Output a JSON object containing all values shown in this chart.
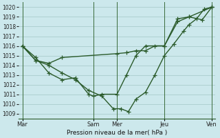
{
  "title": "Pression niveau de la mer( hPa )",
  "background_color": "#cce8ec",
  "grid_color": "#aacccc",
  "line_color": "#2a5a2a",
  "marker": "+",
  "marker_size": 4,
  "line_width": 1.0,
  "ylim": [
    1008.5,
    1020.5
  ],
  "yticks": [
    1009,
    1010,
    1011,
    1012,
    1013,
    1014,
    1015,
    1016,
    1017,
    1018,
    1019,
    1020
  ],
  "ytick_fontsize": 5.5,
  "xtick_labels": [
    "Mar",
    "Sam",
    "Mer",
    "Jeu",
    "Ven"
  ],
  "xtick_positions": [
    0.0,
    0.375,
    0.5,
    0.75,
    1.0
  ],
  "vline_positions": [
    0.0,
    0.375,
    0.5,
    0.75,
    1.0
  ],
  "series": [
    {
      "x": [
        0.0,
        0.07,
        0.14,
        0.21,
        0.5,
        0.55,
        0.6,
        0.65,
        0.7,
        0.75,
        0.82,
        0.88,
        0.95,
        1.0
      ],
      "y": [
        1016.0,
        1014.5,
        1014.2,
        1014.8,
        1015.2,
        1015.3,
        1015.5,
        1015.5,
        1016.0,
        1016.0,
        1018.8,
        1019.0,
        1018.7,
        1020.0
      ]
    },
    {
      "x": [
        0.0,
        0.07,
        0.14,
        0.21,
        0.28,
        0.35,
        0.375,
        0.42,
        0.5,
        0.55,
        0.6,
        0.65,
        0.75,
        0.82,
        0.88,
        1.0
      ],
      "y": [
        1016.0,
        1014.8,
        1013.2,
        1012.5,
        1012.7,
        1011.0,
        1010.8,
        1011.0,
        1011.0,
        1013.0,
        1015.0,
        1016.0,
        1016.0,
        1018.5,
        1019.0,
        1020.0
      ]
    },
    {
      "x": [
        0.0,
        0.07,
        0.14,
        0.21,
        0.28,
        0.35,
        0.42,
        0.48,
        0.52,
        0.56,
        0.6,
        0.65,
        0.7,
        0.75,
        0.8,
        0.85,
        0.88,
        0.92,
        0.96,
        1.0
      ],
      "y": [
        1016.0,
        1014.5,
        1014.0,
        1013.2,
        1012.5,
        1011.4,
        1010.8,
        1009.5,
        1009.5,
        1009.2,
        1010.5,
        1011.2,
        1013.0,
        1015.0,
        1016.2,
        1017.5,
        1018.2,
        1018.8,
        1019.8,
        1020.0
      ]
    }
  ]
}
